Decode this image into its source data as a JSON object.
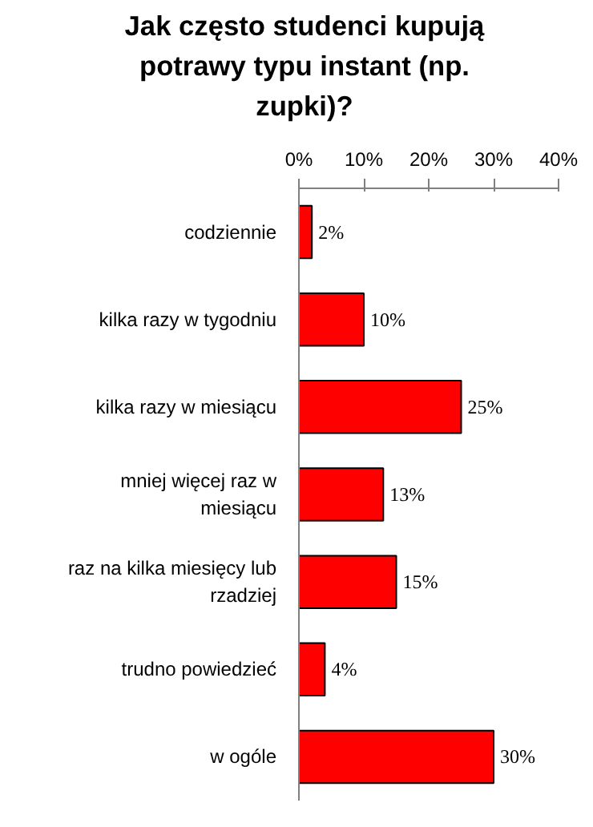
{
  "chart_data": {
    "type": "bar",
    "orientation": "horizontal",
    "title": "Jak często studenci kupują potrawy typu instant (np. zupki)?",
    "categories": [
      "codziennie",
      "kilka razy w tygodniu",
      "kilka razy w miesiącu",
      "mniej więcej raz w miesiącu",
      "raz na kilka miesięcy lub rzadziej",
      "trudno powiedzieć",
      "w ogóle"
    ],
    "values": [
      2,
      10,
      25,
      13,
      15,
      4,
      30
    ],
    "value_labels": [
      "2%",
      "10%",
      "25%",
      "13%",
      "15%",
      "4%",
      "30%"
    ],
    "color": "#ff0000",
    "xlim": [
      0,
      40
    ],
    "xticks": [
      {
        "value": 0,
        "label": "0%"
      },
      {
        "value": 10,
        "label": "10%"
      },
      {
        "value": 20,
        "label": "20%"
      },
      {
        "value": 30,
        "label": "30%"
      },
      {
        "value": 40,
        "label": "40%"
      }
    ],
    "grid": false
  }
}
